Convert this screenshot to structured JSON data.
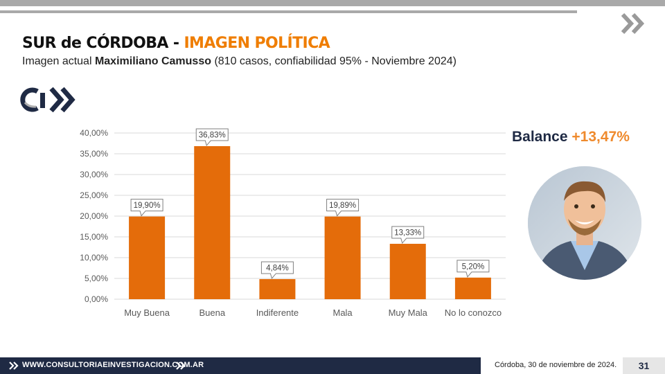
{
  "header": {
    "title_main": "SUR de CÓRDOBA - ",
    "title_accent": "IMAGEN POLÍTICA",
    "subtitle_prefix": "Imagen actual ",
    "subtitle_name": "Maximiliano Camusso",
    "subtitle_suffix": " (810 casos, confiabilidad 95% - Noviembre 2024)"
  },
  "logo": {
    "text": "Ci"
  },
  "balance": {
    "label": "Balance ",
    "value": "+13,47%"
  },
  "footer": {
    "url": "WWW.CONSULTORIAEINVESTIGACION.COM.AR",
    "date": "Córdoba, 30 de noviembre de 2024.",
    "page_number": "31"
  },
  "colors": {
    "bar": "#e46c0a",
    "navy": "#1f2a44",
    "accent": "#ef7d00",
    "grid": "#d9d9d9"
  },
  "chart_data": {
    "type": "bar",
    "title": "",
    "xlabel": "",
    "ylabel": "",
    "categories": [
      "Muy Buena",
      "Buena",
      "Indiferente",
      "Mala",
      "Muy Mala",
      "No lo conozco"
    ],
    "values": [
      19.9,
      36.83,
      4.84,
      19.89,
      13.33,
      5.2
    ],
    "data_labels": [
      "19,90%",
      "36,83%",
      "4,84%",
      "19,89%",
      "13,33%",
      "5,20%"
    ],
    "ylim": [
      0,
      40
    ],
    "yticks": [
      0,
      5,
      10,
      15,
      20,
      25,
      30,
      35,
      40
    ],
    "ytick_labels": [
      "0,00%",
      "5,00%",
      "10,00%",
      "15,00%",
      "20,00%",
      "25,00%",
      "30,00%",
      "35,00%",
      "40,00%"
    ],
    "grid": true
  }
}
